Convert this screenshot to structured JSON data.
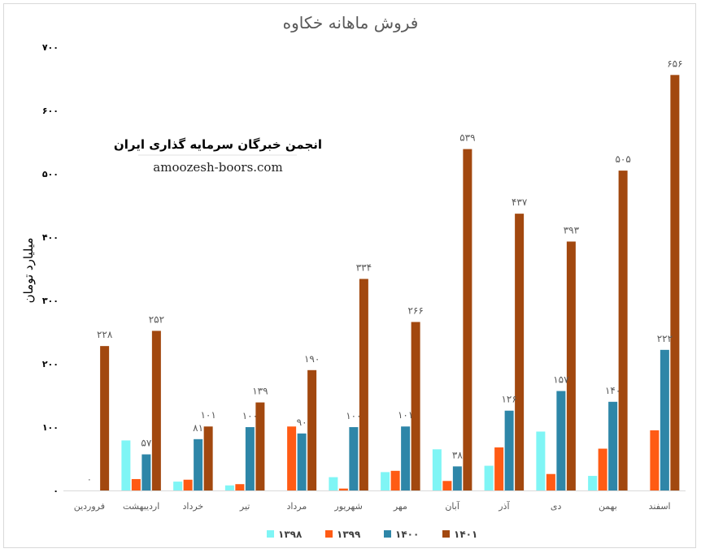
{
  "chart_data": {
    "type": "bar",
    "title": "فروش ماهانه خکاوه",
    "ylabel": "میلیارد تومان",
    "xlabel": "",
    "ylim": [
      0,
      700
    ],
    "yticks": [
      0,
      100,
      200,
      300,
      400,
      500,
      600,
      700
    ],
    "ytick_labels": [
      "۰",
      "۱۰۰",
      "۲۰۰",
      "۳۰۰",
      "۴۰۰",
      "۵۰۰",
      "۶۰۰",
      "۷۰۰"
    ],
    "grid": false,
    "legend": "bottom",
    "categories": [
      "فروردین",
      "اردیبهشت",
      "خرداد",
      "تیر",
      "مرداد",
      "شهریور",
      "مهر",
      "آبان",
      "آذر",
      "دی",
      "بهمن",
      "اسفند"
    ],
    "series": [
      {
        "name": "۱۳۹۸",
        "color": "#7ff5f5",
        "values": [
          0,
          79,
          14,
          8,
          0,
          21,
          29,
          65,
          39,
          93,
          23,
          0
        ]
      },
      {
        "name": "۱۳۹۹",
        "color": "#ff5b14",
        "values": [
          0,
          18,
          17,
          10,
          101,
          3,
          31,
          15,
          68,
          26,
          66,
          95
        ]
      },
      {
        "name": "۱۴۰۰",
        "color": "#2e86a8",
        "values": [
          0,
          57,
          81,
          100,
          90,
          100,
          101,
          38,
          126,
          157,
          140,
          222
        ]
      },
      {
        "name": "۱۴۰۱",
        "color": "#a2480f",
        "values": [
          228,
          252,
          101,
          139,
          190,
          334,
          266,
          539,
          437,
          393,
          505,
          656
        ]
      }
    ],
    "data_labels": [
      {
        "series": 2,
        "index": 1,
        "text": "۵۷"
      },
      {
        "series": 2,
        "index": 2,
        "text": "۸۱"
      },
      {
        "series": 2,
        "index": 3,
        "text": "۱۰۰"
      },
      {
        "series": 2,
        "index": 4,
        "text": "۹۰"
      },
      {
        "series": 2,
        "index": 5,
        "text": "۱۰۰"
      },
      {
        "series": 2,
        "index": 6,
        "text": "۱۰۱"
      },
      {
        "series": 2,
        "index": 7,
        "text": "۳۸"
      },
      {
        "series": 2,
        "index": 8,
        "text": "۱۲۶"
      },
      {
        "series": 2,
        "index": 9,
        "text": "۱۵۷"
      },
      {
        "series": 2,
        "index": 10,
        "text": "۱۴۰"
      },
      {
        "series": 2,
        "index": 11,
        "text": "۲۲۲"
      },
      {
        "series": 3,
        "index": 0,
        "text": "۲۲۸"
      },
      {
        "series": 3,
        "index": 1,
        "text": "۲۵۲"
      },
      {
        "series": 3,
        "index": 2,
        "text": "۱۰۱"
      },
      {
        "series": 3,
        "index": 3,
        "text": "۱۳۹"
      },
      {
        "series": 3,
        "index": 4,
        "text": "۱۹۰"
      },
      {
        "series": 3,
        "index": 5,
        "text": "۳۳۴"
      },
      {
        "series": 3,
        "index": 6,
        "text": "۲۶۶"
      },
      {
        "series": 3,
        "index": 7,
        "text": "۵۳۹"
      },
      {
        "series": 3,
        "index": 8,
        "text": "۴۳۷"
      },
      {
        "series": 3,
        "index": 9,
        "text": "۳۹۳"
      },
      {
        "series": 3,
        "index": 10,
        "text": "۵۰۵"
      },
      {
        "series": 3,
        "index": 11,
        "text": "۶۵۶"
      }
    ],
    "extra_labels": [
      {
        "category_index": 0,
        "text": "۰"
      }
    ]
  },
  "watermark": {
    "title": "انجمن خبرگان سرمایه گذاری ایران",
    "url": "amoozesh-boors.com"
  }
}
